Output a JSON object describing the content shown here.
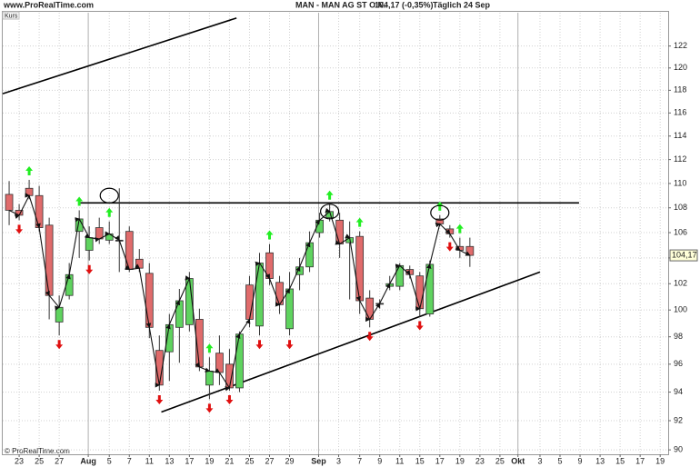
{
  "header": {
    "site": "www.ProRealTime.com",
    "instrument": "MAN - MAN AG ST O.N.",
    "quote": "104,17 (-0,35%)",
    "period": "Täglich 24 Sep"
  },
  "footer": "© ProRealTime.com",
  "chart_data": {
    "type": "candlestick",
    "panel_label": "Kurs",
    "log_scale": true,
    "grid": true,
    "up_color": "#5fd35f",
    "down_color": "#e06b6b",
    "x": [
      0,
      1,
      2,
      3,
      4,
      5,
      6,
      7,
      8,
      9,
      10,
      11,
      12,
      13,
      14,
      15,
      16,
      17,
      18,
      19,
      20,
      21,
      22,
      23,
      24,
      25,
      26,
      27,
      28,
      29,
      30,
      31,
      32,
      33,
      34,
      35,
      36,
      37,
      38,
      39,
      40,
      41,
      42,
      43,
      44,
      45,
      46
    ],
    "open": [
      109.1,
      107.8,
      109.6,
      109.0,
      106.6,
      99.1,
      101.1,
      106.1,
      104.6,
      106.4,
      105.4,
      105.4,
      106.1,
      103.9,
      102.8,
      97.0,
      96.9,
      98.7,
      98.9,
      99.3,
      94.5,
      96.8,
      96.0,
      94.3,
      101.9,
      98.8,
      104.4,
      102.1,
      98.6,
      102.7,
      103.3,
      106.0,
      107.2,
      107.0,
      105.2,
      105.7,
      100.9,
      100.5,
      101.8,
      101.8,
      103.1,
      102.6,
      99.7,
      107.1,
      106.3,
      104.9,
      104.9
    ],
    "high": [
      110.2,
      108.3,
      110.3,
      109.8,
      107.2,
      101.1,
      103.6,
      107.8,
      106.5,
      107.2,
      106.9,
      109.6,
      106.5,
      104.7,
      103.6,
      98.1,
      99.7,
      101.6,
      102.9,
      100.1,
      96.5,
      98.1,
      97.1,
      98.4,
      102.6,
      104.4,
      105.1,
      102.6,
      102.9,
      104.0,
      106.1,
      107.6,
      108.3,
      107.6,
      106.9,
      106.1,
      101.5,
      100.8,
      102.6,
      103.6,
      103.4,
      102.9,
      103.8,
      107.4,
      106.6,
      105.6,
      105.6
    ],
    "low": [
      106.6,
      107.0,
      108.7,
      106.1,
      99.3,
      98.1,
      100.8,
      104.0,
      103.8,
      105.1,
      105.1,
      102.9,
      102.9,
      102.9,
      97.9,
      94.1,
      94.8,
      96.1,
      98.4,
      95.5,
      93.5,
      94.5,
      94.1,
      94.0,
      98.7,
      98.1,
      101.9,
      99.7,
      98.1,
      101.5,
      102.9,
      105.6,
      106.9,
      104.0,
      100.8,
      99.7,
      98.7,
      100.1,
      101.5,
      101.5,
      102.4,
      99.5,
      99.5,
      106.5,
      105.6,
      104.0,
      103.3
    ],
    "close": [
      107.8,
      107.4,
      109.0,
      106.4,
      101.1,
      100.2,
      102.7,
      107.1,
      105.6,
      105.5,
      105.9,
      105.4,
      103.1,
      103.2,
      98.7,
      94.5,
      98.9,
      100.7,
      102.4,
      95.8,
      95.5,
      95.4,
      94.3,
      98.2,
      99.3,
      103.6,
      102.4,
      100.4,
      101.6,
      103.3,
      105.2,
      107.0,
      107.7,
      105.1,
      105.6,
      100.7,
      99.3,
      100.5,
      102.0,
      103.4,
      102.7,
      100.1,
      103.5,
      106.7,
      105.9,
      104.6,
      104.2
    ],
    "last_price_label": "104,17",
    "up_signals": [
      2,
      7,
      10,
      20,
      26,
      32,
      35,
      43,
      45
    ],
    "down_signals": [
      1,
      5,
      8,
      15,
      20,
      22,
      25,
      28,
      36,
      41,
      44
    ],
    "trend_lines": [
      {
        "x": [
          -0.64,
          22.7
        ],
        "y": [
          117.7,
          124.6
        ]
      },
      {
        "x": [
          7.1,
          56.9
        ],
        "y": [
          108.4,
          108.4
        ]
      },
      {
        "x": [
          15.2,
          53.0
        ],
        "y": [
          92.6,
          102.9
        ]
      }
    ],
    "circles": [
      {
        "x": 10,
        "y": 109.0
      },
      {
        "x": 32,
        "y": 107.7
      },
      {
        "x": 43,
        "y": 107.6
      }
    ],
    "xlim": [
      -0.64,
      65.8
    ],
    "ylim": [
      89.7,
      125.1
    ],
    "yticks": [
      90,
      92,
      94,
      96,
      98,
      100,
      102,
      104,
      106,
      108,
      110,
      112,
      114,
      116,
      118,
      120,
      122
    ],
    "xticks": [
      {
        "value": 1,
        "label": "23"
      },
      {
        "value": 3,
        "label": "25"
      },
      {
        "value": 5,
        "label": "27"
      },
      {
        "value": 7.9,
        "label": "Aug"
      },
      {
        "value": 10,
        "label": "5"
      },
      {
        "value": 12,
        "label": "7"
      },
      {
        "value": 14,
        "label": "11"
      },
      {
        "value": 16,
        "label": "13"
      },
      {
        "value": 18,
        "label": "17"
      },
      {
        "value": 20,
        "label": "19"
      },
      {
        "value": 22,
        "label": "21"
      },
      {
        "value": 24,
        "label": "25"
      },
      {
        "value": 26,
        "label": "27"
      },
      {
        "value": 28,
        "label": "29"
      },
      {
        "value": 30.9,
        "label": "Sep"
      },
      {
        "value": 32.9,
        "label": "3"
      },
      {
        "value": 35,
        "label": "7"
      },
      {
        "value": 37,
        "label": "9"
      },
      {
        "value": 39,
        "label": "11"
      },
      {
        "value": 41,
        "label": "15"
      },
      {
        "value": 43,
        "label": "17"
      },
      {
        "value": 45,
        "label": "19"
      },
      {
        "value": 47,
        "label": "23"
      },
      {
        "value": 49,
        "label": "25"
      },
      {
        "value": 50.8,
        "label": "Okt"
      },
      {
        "value": 53,
        "label": "3"
      },
      {
        "value": 55,
        "label": "5"
      },
      {
        "value": 57,
        "label": "9"
      },
      {
        "value": 59,
        "label": "13"
      },
      {
        "value": 61,
        "label": "15"
      },
      {
        "value": 63,
        "label": "17"
      },
      {
        "value": 65,
        "label": "19"
      }
    ]
  }
}
